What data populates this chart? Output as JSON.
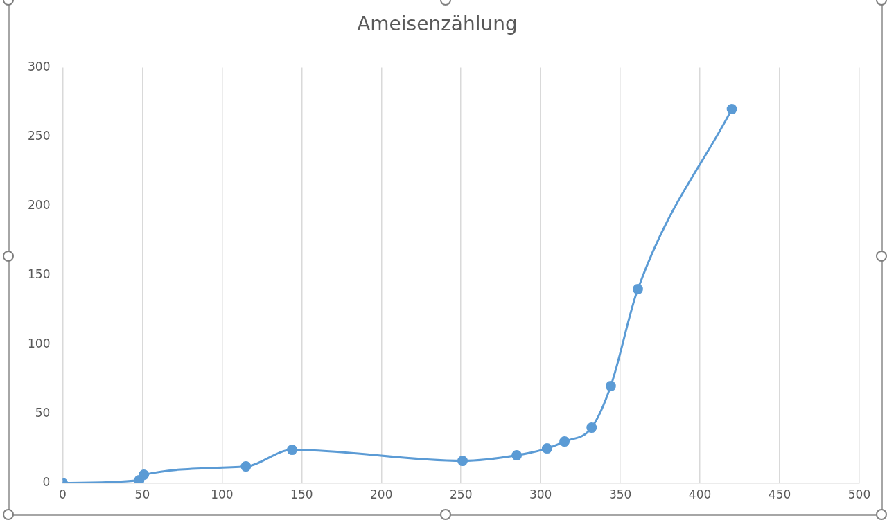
{
  "chart_data": {
    "type": "line",
    "title": "Ameisenzählung",
    "x": [
      0,
      48,
      51,
      115,
      144,
      251,
      285,
      304,
      315,
      332,
      344,
      361,
      420
    ],
    "series": [
      {
        "color": "#5b9bd5",
        "values": [
          0,
          2,
          6,
          12,
          24,
          16,
          20,
          25,
          30,
          40,
          70,
          140,
          270
        ]
      }
    ],
    "xlim": [
      0,
      500
    ],
    "xticks": [
      0,
      50,
      100,
      150,
      200,
      250,
      300,
      350,
      400,
      450,
      500
    ],
    "ylim": [
      0,
      300
    ],
    "yticks": [
      0,
      50,
      100,
      150,
      200,
      250,
      300
    ],
    "grid": "x",
    "legend": false,
    "marker": "circle",
    "line_style": "solid"
  }
}
